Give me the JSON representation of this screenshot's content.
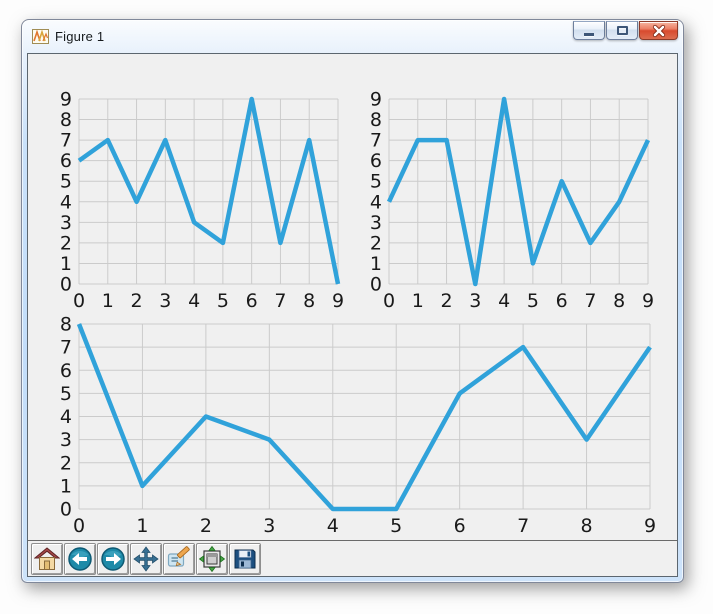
{
  "window": {
    "title": "Figure 1",
    "icon": "matplotlib-logo-icon",
    "controls": {
      "minimize": "minimize",
      "maximize": "maximize",
      "close": "close"
    }
  },
  "toolbar": {
    "buttons": [
      {
        "name": "home",
        "icon": "home-icon"
      },
      {
        "name": "back",
        "icon": "back-arrow-icon"
      },
      {
        "name": "forward",
        "icon": "forward-arrow-icon"
      },
      {
        "name": "pan",
        "icon": "pan-arrows-icon"
      },
      {
        "name": "zoom",
        "icon": "zoom-rect-icon"
      },
      {
        "name": "subplots",
        "icon": "subplots-config-icon"
      },
      {
        "name": "save",
        "icon": "save-floppy-icon"
      }
    ]
  },
  "colors": {
    "line": "#30a2da",
    "grid": "#cbcbcb",
    "canvas_bg": "#f0f0f0",
    "titlebar": "#c8e2fb",
    "close_button": "#d84a2e",
    "toolbar_bg": "#f0f0f0",
    "tick_label": "#1a1a1a"
  },
  "chart_data": [
    {
      "type": "line",
      "position": "top-left",
      "x": [
        0,
        1,
        2,
        3,
        4,
        5,
        6,
        7,
        8,
        9
      ],
      "values": [
        6,
        7,
        4,
        7,
        3,
        2,
        9,
        2,
        7,
        0
      ],
      "xlim": [
        0,
        9
      ],
      "ylim": [
        0,
        9
      ],
      "xticks": [
        0,
        1,
        2,
        3,
        4,
        5,
        6,
        7,
        8,
        9
      ],
      "yticks": [
        0,
        1,
        2,
        3,
        4,
        5,
        6,
        7,
        8,
        9
      ],
      "title": "",
      "xlabel": "",
      "ylabel": "",
      "grid": true,
      "legend": false
    },
    {
      "type": "line",
      "position": "top-right",
      "x": [
        0,
        1,
        2,
        3,
        4,
        5,
        6,
        7,
        8,
        9
      ],
      "values": [
        4,
        7,
        7,
        0,
        9,
        1,
        5,
        2,
        4,
        7
      ],
      "xlim": [
        0,
        9
      ],
      "ylim": [
        0,
        9
      ],
      "xticks": [
        0,
        1,
        2,
        3,
        4,
        5,
        6,
        7,
        8,
        9
      ],
      "yticks": [
        0,
        1,
        2,
        3,
        4,
        5,
        6,
        7,
        8,
        9
      ],
      "title": "",
      "xlabel": "",
      "ylabel": "",
      "grid": true,
      "legend": false
    },
    {
      "type": "line",
      "position": "bottom",
      "x": [
        0,
        1,
        2,
        3,
        4,
        5,
        6,
        7,
        8,
        9
      ],
      "values": [
        8,
        1,
        4,
        3,
        0,
        0,
        5,
        7,
        3,
        7
      ],
      "xlim": [
        0,
        9
      ],
      "ylim": [
        0,
        8
      ],
      "xticks": [
        0,
        1,
        2,
        3,
        4,
        5,
        6,
        7,
        8,
        9
      ],
      "yticks": [
        0,
        1,
        2,
        3,
        4,
        5,
        6,
        7,
        8
      ],
      "title": "",
      "xlabel": "",
      "ylabel": "",
      "grid": true,
      "legend": false
    }
  ]
}
